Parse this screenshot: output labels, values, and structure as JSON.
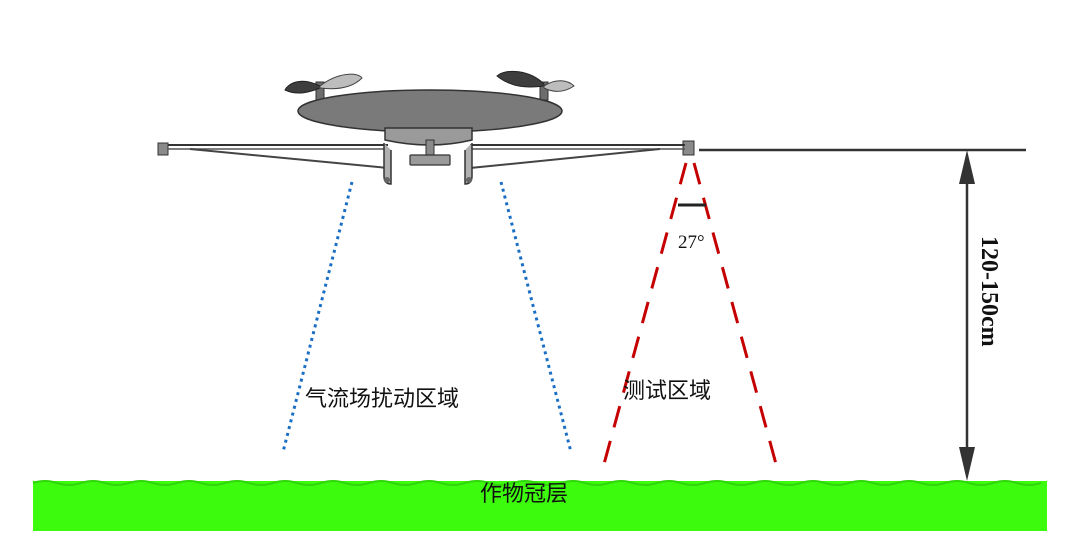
{
  "labels": {
    "airflow_zone": "气流场扰动区域",
    "test_zone": "测试区域",
    "angle": "27°",
    "height": "120-150cm",
    "canopy": "作物冠层"
  },
  "colors": {
    "canopy": "#3cfb0c",
    "airflow_lines": "#1a6fc4",
    "test_lines": "#c40000",
    "drone_body": "#7a7a7a",
    "frame": "#333333"
  }
}
